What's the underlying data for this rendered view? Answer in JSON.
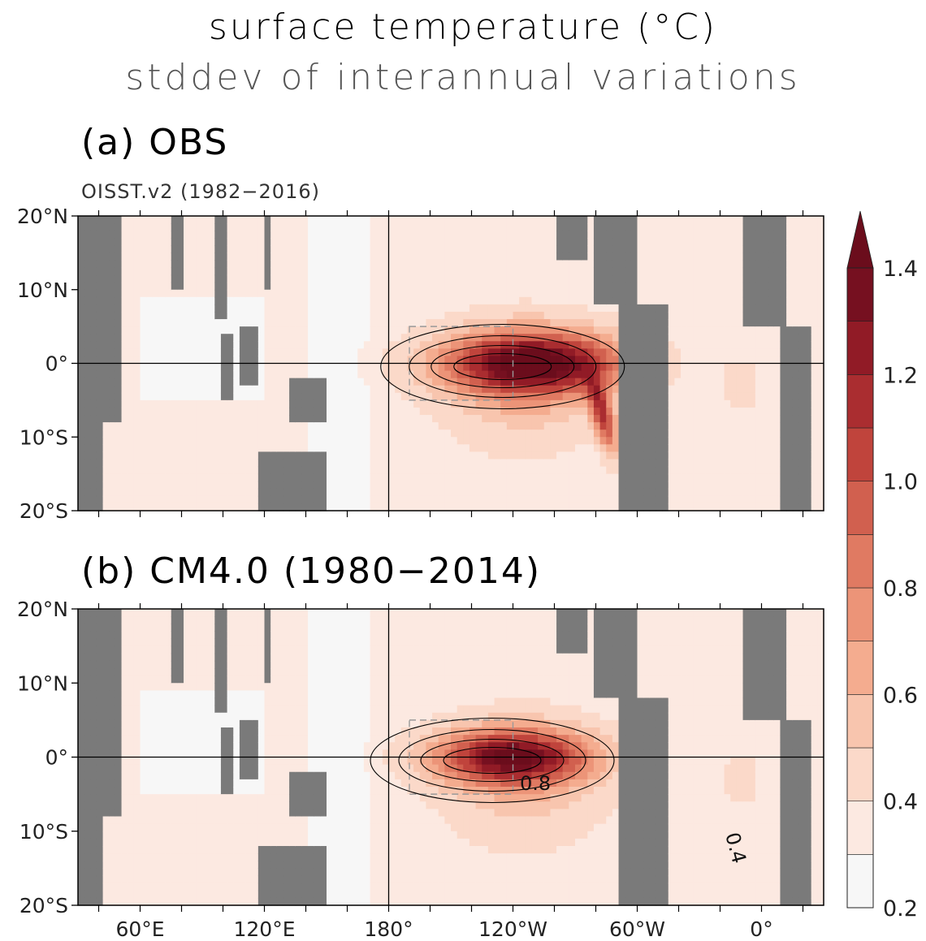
{
  "title": "surface temperature (°C)",
  "subtitle": "stddev of interannual variations",
  "chart_data": {
    "type": "heatmap",
    "variable": "surface temperature stddev of interannual variations (°C)",
    "longitude_ticks": [
      "60°E",
      "120°E",
      "180°",
      "120°W",
      "60°W",
      "0°"
    ],
    "latitude_ticks": [
      "20°N",
      "10°N",
      "0°",
      "10°S",
      "20°S"
    ],
    "colorbar": {
      "ticks": [
        "1.4",
        "1.2",
        "1.0",
        "0.8",
        "0.6",
        "0.4",
        "0.2"
      ],
      "range": [
        0.2,
        1.4
      ],
      "step": 0.1,
      "colors": [
        "#f7f7f7",
        "#fce9e1",
        "#fbd9c9",
        "#f8c5ae",
        "#f4ac8f",
        "#ec9478",
        "#e07a62",
        "#d1604f",
        "#c0443c",
        "#aa2d30",
        "#911b26",
        "#761020",
        "#6b0d1c"
      ],
      "extend": "max"
    },
    "panels": [
      {
        "label": "(a) OBS",
        "source": "OISST.v2 (1982−2016)",
        "equatorial_max_approx": 1.3,
        "contour_labels": []
      },
      {
        "label": "(b) CM4.0 (1980−2014)",
        "source": "",
        "equatorial_max_approx": 1.25,
        "contour_labels": [
          "0.8",
          "0.4"
        ]
      }
    ]
  }
}
